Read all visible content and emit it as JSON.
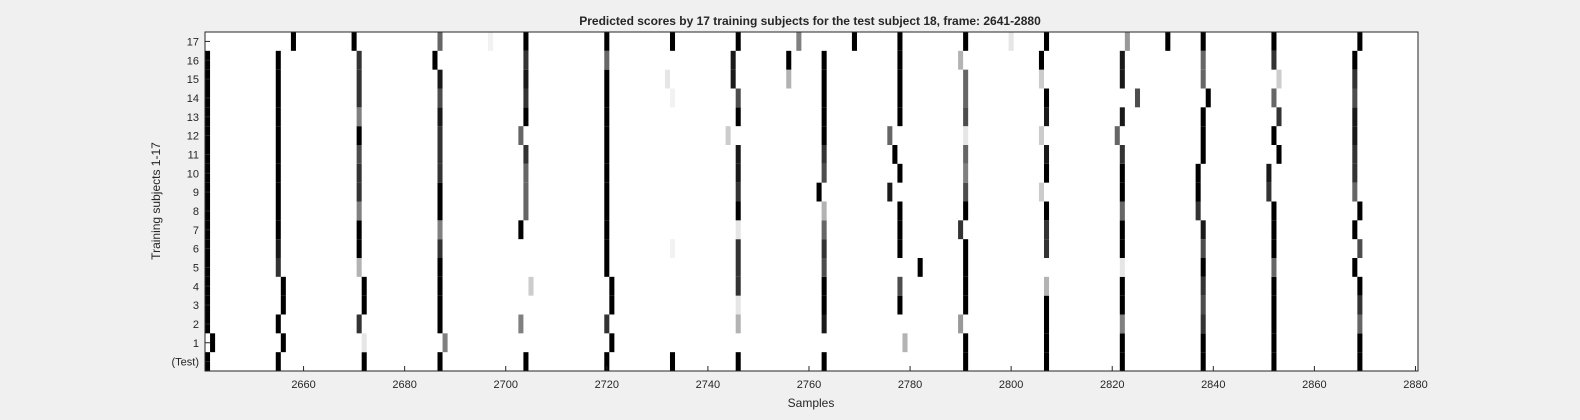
{
  "chart_data": {
    "type": "heatmap",
    "title": "Predicted scores by 17 training subjects for the test subject 18, frame: 2641-2880",
    "xlabel": "Samples",
    "ylabel": "Training subjects 1-17",
    "xlim": [
      2641,
      2880
    ],
    "xticks": [
      2660,
      2680,
      2700,
      2720,
      2740,
      2760,
      2780,
      2800,
      2820,
      2840,
      2860,
      2880
    ],
    "rows": [
      "(Test)",
      "1",
      "2",
      "3",
      "4",
      "5",
      "6",
      "7",
      "8",
      "9",
      "10",
      "11",
      "12",
      "13",
      "14",
      "15",
      "16",
      "17"
    ],
    "colormap": "gray, 0 = white, 1 = black",
    "background_value": 0,
    "grid": false,
    "cells": [
      {
        "row": "(Test)",
        "x": [
          2641,
          2655,
          2672,
          2687,
          2704,
          2720,
          2733,
          2746,
          2763,
          2791,
          2807,
          2822,
          2838,
          2852,
          2869
        ],
        "v": [
          1,
          1,
          1,
          1,
          1,
          1,
          1,
          1,
          1,
          1,
          1,
          1,
          1,
          1,
          1
        ]
      },
      {
        "row": "1",
        "x": [
          2642,
          2656,
          2672,
          2688,
          2721,
          2779,
          2791,
          2807,
          2822,
          2838,
          2852,
          2869
        ],
        "v": [
          1,
          1,
          0.1,
          0.5,
          1,
          0.3,
          1,
          1,
          1,
          1,
          1,
          1
        ]
      },
      {
        "row": "2",
        "x": [
          2641,
          2655,
          2671,
          2687,
          2703,
          2720,
          2746,
          2763,
          2790,
          2807,
          2822,
          2838,
          2852,
          2869
        ],
        "v": [
          1,
          1,
          0.8,
          1,
          0.5,
          0.8,
          0.3,
          0.9,
          0.4,
          1,
          0.5,
          0.8,
          1,
          0.6
        ]
      },
      {
        "row": "3",
        "x": [
          2641,
          2656,
          2672,
          2687,
          2721,
          2746,
          2763,
          2778,
          2791,
          2807,
          2822,
          2838,
          2852,
          2869
        ],
        "v": [
          1,
          1,
          1,
          1,
          1,
          0.1,
          1,
          1,
          1,
          1,
          1,
          0.7,
          1,
          0.8
        ]
      },
      {
        "row": "4",
        "x": [
          2641,
          2656,
          2672,
          2687,
          2705,
          2721,
          2746,
          2763,
          2778,
          2791,
          2807,
          2822,
          2838,
          2852,
          2869
        ],
        "v": [
          1,
          1,
          1,
          1,
          0.2,
          1,
          0.8,
          1,
          0.7,
          1,
          0.3,
          1,
          0.8,
          1,
          1
        ]
      },
      {
        "row": "5",
        "x": [
          2641,
          2655,
          2671,
          2687,
          2720,
          2746,
          2763,
          2782,
          2791,
          2822,
          2838,
          2852,
          2868
        ],
        "v": [
          1,
          0.8,
          0.3,
          1,
          1,
          0.8,
          0.7,
          1,
          1,
          0.1,
          1,
          0.6,
          1
        ]
      },
      {
        "row": "6",
        "x": [
          2641,
          2655,
          2671,
          2687,
          2720,
          2733,
          2746,
          2763,
          2778,
          2791,
          2807,
          2822,
          2838,
          2852,
          2869
        ],
        "v": [
          1,
          0.9,
          1,
          0.8,
          1,
          0.05,
          0.8,
          0.8,
          1,
          1,
          0.8,
          1,
          0.7,
          1,
          0.7
        ]
      },
      {
        "row": "7",
        "x": [
          2641,
          2655,
          2671,
          2687,
          2703,
          2720,
          2746,
          2763,
          2778,
          2790,
          2807,
          2822,
          2838,
          2852,
          2868
        ],
        "v": [
          1,
          1,
          1,
          0.5,
          1,
          1,
          0.1,
          0.6,
          1,
          0.8,
          0.8,
          1,
          0.9,
          1,
          1
        ]
      },
      {
        "row": "8",
        "x": [
          2641,
          2655,
          2671,
          2687,
          2704,
          2720,
          2746,
          2763,
          2778,
          2791,
          2807,
          2822,
          2837,
          2852,
          2869
        ],
        "v": [
          1,
          1,
          0.5,
          1,
          0.6,
          1,
          1,
          0.3,
          1,
          1,
          1,
          0.6,
          0.8,
          1,
          1
        ]
      },
      {
        "row": "9",
        "x": [
          2641,
          2655,
          2671,
          2687,
          2704,
          2720,
          2746,
          2762,
          2776,
          2791,
          2806,
          2822,
          2837,
          2851,
          2868
        ],
        "v": [
          1,
          1,
          0.8,
          1,
          0.6,
          1,
          0.8,
          1,
          0.9,
          0.7,
          0.2,
          1,
          1,
          0.8,
          0.6
        ]
      },
      {
        "row": "10",
        "x": [
          2641,
          2655,
          2671,
          2687,
          2704,
          2720,
          2746,
          2763,
          2778,
          2791,
          2807,
          2822,
          2837,
          2851,
          2868
        ],
        "v": [
          1,
          1,
          0.8,
          0.8,
          0.6,
          1,
          0.9,
          0.7,
          1,
          0.5,
          1,
          1,
          1,
          0.9,
          0.8
        ]
      },
      {
        "row": "11",
        "x": [
          2641,
          2655,
          2671,
          2687,
          2704,
          2720,
          2746,
          2763,
          2777,
          2791,
          2807,
          2822,
          2838,
          2853,
          2868
        ],
        "v": [
          1,
          1,
          0.7,
          0.8,
          0.8,
          1,
          0.9,
          0.8,
          1,
          0.6,
          0.9,
          0.8,
          1,
          1,
          0.8
        ]
      },
      {
        "row": "12",
        "x": [
          2641,
          2655,
          2671,
          2687,
          2703,
          2720,
          2744,
          2763,
          2776,
          2791,
          2806,
          2821,
          2838,
          2852,
          2868
        ],
        "v": [
          1,
          1,
          1,
          0.8,
          0.6,
          1,
          0.2,
          1,
          0.6,
          0.1,
          0.2,
          0.6,
          1,
          1,
          0.9
        ]
      },
      {
        "row": "13",
        "x": [
          2641,
          2655,
          2671,
          2687,
          2704,
          2720,
          2746,
          2763,
          2778,
          2791,
          2807,
          2822,
          2838,
          2853,
          2868
        ],
        "v": [
          1,
          1,
          0.5,
          0.9,
          1,
          1,
          1,
          1,
          1,
          0.7,
          0.9,
          0.9,
          1,
          0.8,
          0.9
        ]
      },
      {
        "row": "14",
        "x": [
          2641,
          2655,
          2671,
          2687,
          2704,
          2720,
          2733,
          2746,
          2763,
          2778,
          2791,
          2807,
          2825,
          2839,
          2852,
          2868
        ],
        "v": [
          1,
          1,
          0.8,
          0.7,
          0.8,
          1,
          0.05,
          0.7,
          1,
          1,
          0.6,
          1,
          0.7,
          1,
          0.6,
          0.7
        ]
      },
      {
        "row": "15",
        "x": [
          2641,
          2655,
          2671,
          2687,
          2704,
          2720,
          2732,
          2745,
          2756,
          2763,
          2778,
          2791,
          2806,
          2822,
          2838,
          2853,
          2868
        ],
        "v": [
          1,
          1,
          0.8,
          0.9,
          0.9,
          1,
          0.1,
          0.9,
          0.3,
          1,
          1,
          0.6,
          0.2,
          0.9,
          0.6,
          0.2,
          0.8
        ]
      },
      {
        "row": "16",
        "x": [
          2641,
          2655,
          2671,
          2686,
          2704,
          2720,
          2745,
          2756,
          2763,
          2778,
          2790,
          2806,
          2822,
          2838,
          2852,
          2868
        ],
        "v": [
          1,
          1,
          0.8,
          1,
          0.8,
          0.6,
          0.9,
          1,
          1,
          1,
          0.3,
          1,
          0.9,
          0.6,
          0.8,
          1
        ]
      },
      {
        "row": "17",
        "x": [
          2658,
          2670,
          2687,
          2697,
          2704,
          2720,
          2733,
          2746,
          2758,
          2769,
          2778,
          2791,
          2800,
          2807,
          2823,
          2831,
          2838,
          2852,
          2869
        ],
        "v": [
          1,
          1,
          0.6,
          0.05,
          1,
          1,
          1,
          1,
          0.5,
          1,
          1,
          1,
          0.1,
          1,
          0.4,
          1,
          1,
          1,
          1
        ]
      }
    ]
  }
}
